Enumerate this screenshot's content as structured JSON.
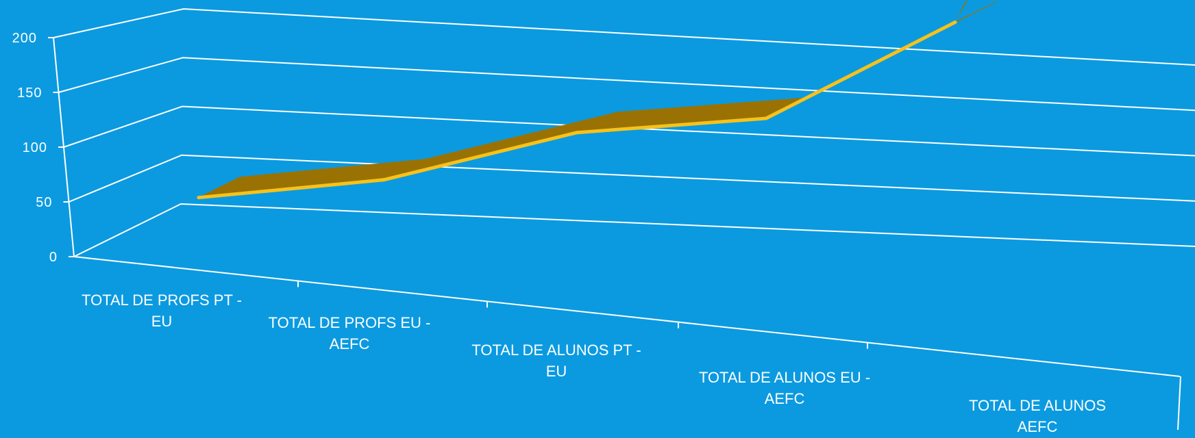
{
  "colors": {
    "background": "#0b9ae0",
    "gridline": "#ffffff",
    "ribbon_top": "#c89404",
    "ribbon_slope": "#9a7203",
    "ribbon_edge": "#f7c21a",
    "text": "#ffffff"
  },
  "chart_data": {
    "type": "line",
    "style": "3d-ribbon",
    "title": "",
    "xlabel": "",
    "ylabel": "",
    "ylim": [
      0,
      200
    ],
    "yticks": [
      "0",
      "50",
      "100",
      "150",
      "200"
    ],
    "grid": true,
    "legend": "none",
    "categories": [
      "TOTAL DE PROFS PT - EU",
      "TOTAL DE PROFS EU - AEFC",
      "TOTAL DE ALUNOS PT - EU",
      "TOTAL DE ALUNOS EU - AEFC",
      "TOTAL DE ALUNOS AEFC"
    ],
    "category_lines": [
      [
        "TOTAL DE PROFS PT -",
        "EU"
      ],
      [
        "TOTAL DE PROFS EU -",
        "AEFC"
      ],
      [
        "TOTAL DE ALUNOS PT -",
        "EU"
      ],
      [
        "TOTAL DE ALUNOS EU -",
        "AEFC"
      ],
      [
        "TOTAL DE ALUNOS",
        "AEFC"
      ]
    ],
    "series": [
      {
        "values": [
          52,
          56,
          90,
          90,
          175
        ]
      }
    ]
  }
}
